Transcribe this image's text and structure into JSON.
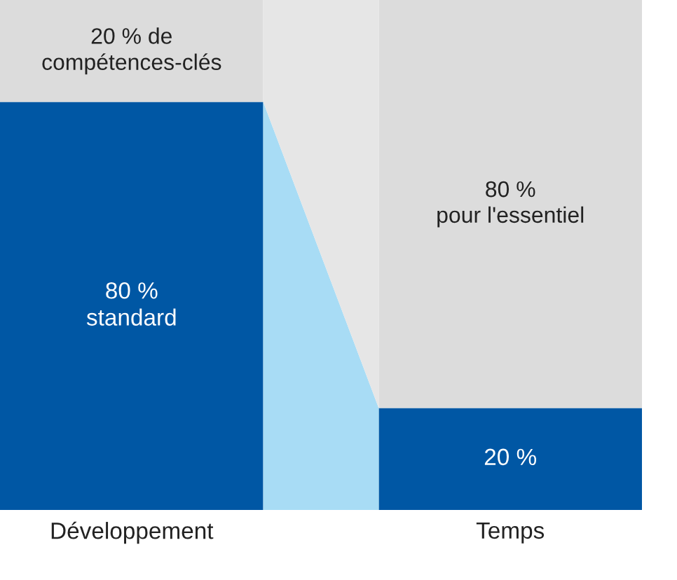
{
  "chart_data": {
    "type": "bar",
    "stacked": true,
    "categories": [
      "Développement",
      "Temps"
    ],
    "series": [
      {
        "color": "#0057a4",
        "values": [
          80,
          20
        ],
        "value_labels": [
          "80 %\nstandard",
          "20 %"
        ]
      },
      {
        "color": "#dcdcdc",
        "values": [
          20,
          80
        ],
        "value_labels": [
          "20 % de\ncompétences-clés",
          "80 %\npour l'essentiel"
        ]
      }
    ],
    "ylim": [
      0,
      100
    ],
    "grid": false
  }
}
